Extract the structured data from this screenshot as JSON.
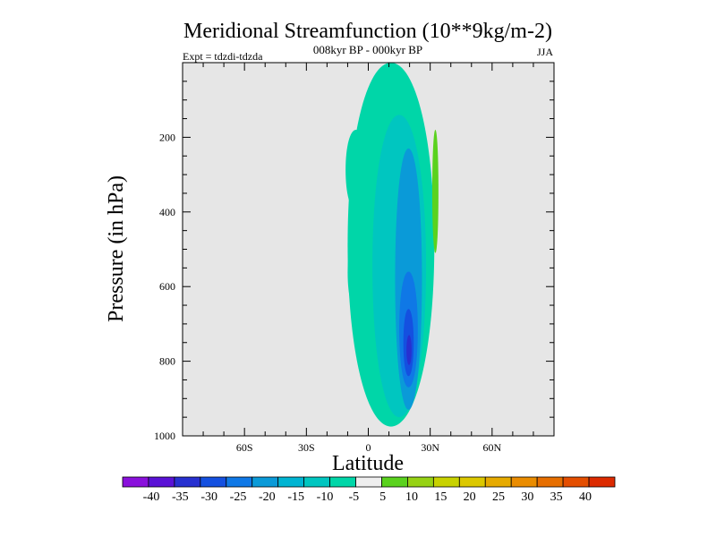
{
  "chart_data": {
    "type": "contour",
    "title": "Meridional Streamfunction (10**9kg/m-2)",
    "subtitle": "008kyr BP - 000kyr BP",
    "left_label": "Expt = tdzdi-tdzda",
    "right_label": "JJA",
    "xlabel": "Latitude",
    "ylabel": "Pressure (in hPa)",
    "xlim": [
      -90,
      90
    ],
    "ylim": [
      1000,
      0
    ],
    "x_ticks": [
      {
        "value": -60,
        "label": "60S"
      },
      {
        "value": -30,
        "label": "30S"
      },
      {
        "value": 0,
        "label": "0"
      },
      {
        "value": 30,
        "label": "30N"
      },
      {
        "value": 60,
        "label": "60N"
      }
    ],
    "y_ticks": [
      {
        "value": 200,
        "label": "200"
      },
      {
        "value": 400,
        "label": "400"
      },
      {
        "value": 600,
        "label": "600"
      },
      {
        "value": 800,
        "label": "800"
      },
      {
        "value": 1000,
        "label": "1000"
      }
    ],
    "background_color": "#e6e6e6",
    "colorbar": {
      "colors": [
        "#8a10dc",
        "#5a12d6",
        "#2730d0",
        "#1450e0",
        "#0f78e6",
        "#0a9ad8",
        "#00b4d2",
        "#00c6c0",
        "#00d6a8",
        "#eeeeee",
        "#5ad21e",
        "#96d214",
        "#c8d200",
        "#dcc800",
        "#e6aa00",
        "#ea8c00",
        "#e66e00",
        "#e44e00",
        "#dc2a00"
      ],
      "labels": [
        "-40",
        "-35",
        "-30",
        "-25",
        "-20",
        "-15",
        "-10",
        "-5",
        "5",
        "10",
        "15",
        "20",
        "25",
        "30",
        "35",
        "40"
      ]
    },
    "regions": [
      {
        "name": "upper-tropical-neg",
        "level": "-10 to -5",
        "color": "#00d6a8",
        "lat_range": [
          -10,
          32
        ],
        "p_range": [
          0,
          975
        ]
      },
      {
        "name": "south-upper-lobe",
        "level": "-10 to -5",
        "color": "#00d6a8",
        "lat_range": [
          -11,
          -1
        ],
        "p_range": [
          180,
          395
        ]
      },
      {
        "name": "south-lower-lobe",
        "level": "-10 to -5",
        "color": "#00d6a8",
        "lat_range": [
          -10,
          0
        ],
        "p_range": [
          455,
          670
        ]
      },
      {
        "name": "core-neg-15",
        "level": "-15 to -10",
        "color": "#00c6c0",
        "lat_range": [
          2,
          28
        ],
        "p_range": [
          140,
          950
        ]
      },
      {
        "name": "core-neg-20",
        "level": "-20 to -15",
        "color": "#0a9ad8",
        "lat_range": [
          13,
          26
        ],
        "p_range": [
          230,
          930
        ]
      },
      {
        "name": "core-neg-25",
        "level": "-25 to -20",
        "color": "#0f78e6",
        "lat_range": [
          15,
          24
        ],
        "p_range": [
          560,
          870
        ]
      },
      {
        "name": "core-neg-30",
        "level": "-30 to -25",
        "color": "#1450e0",
        "lat_range": [
          17,
          22
        ],
        "p_range": [
          660,
          840
        ]
      },
      {
        "name": "core-neg-35",
        "level": "-35 to -30",
        "color": "#2730d0",
        "lat_range": [
          18.5,
          21
        ],
        "p_range": [
          730,
          810
        ]
      },
      {
        "name": "positive-cell-30N",
        "level": "5 to 10",
        "color": "#5ad21e",
        "lat_range": [
          31,
          34
        ],
        "p_range": [
          180,
          510
        ]
      }
    ]
  }
}
